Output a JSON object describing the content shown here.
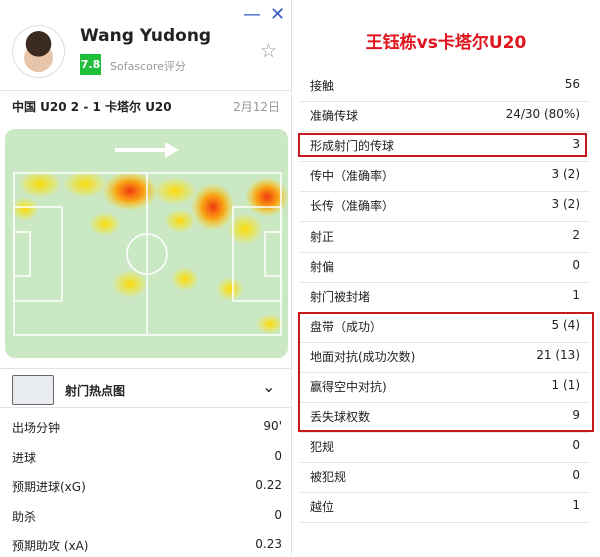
{
  "window": {
    "minimize_icon": "minimize-icon",
    "close_icon": "close-icon"
  },
  "player": {
    "name": "Wang Yudong",
    "rating": "7.8",
    "rating_label": "Sofascore评分",
    "rating_color": "#1fbf3a"
  },
  "match": {
    "teams": "中国 U20 2 - 1 卡塔尔 U20",
    "date": "2月12日"
  },
  "shotmap": {
    "label": "射门热点图"
  },
  "left_stats": [
    {
      "label": "出场分钟",
      "value": "90'"
    },
    {
      "label": "进球",
      "value": "0"
    },
    {
      "label": "预期进球(xG)",
      "value": "0.22"
    },
    {
      "label": "助杀",
      "value": "0"
    },
    {
      "label": "预期助攻 (xA)",
      "value": "0.23"
    }
  ],
  "right": {
    "title": "王钰栋vs卡塔尔U20",
    "title_color": "#e0141e",
    "stats": [
      {
        "label": "接触",
        "value": "56"
      },
      {
        "label": "准确传球",
        "value": "24/30 (80%)"
      },
      {
        "label": "形成射门的传球",
        "value": "3"
      },
      {
        "label": "传中（准确率）",
        "value": "3 (2)"
      },
      {
        "label": "长传（准确率）",
        "value": "3 (2)"
      },
      {
        "label": "射正",
        "value": "2"
      },
      {
        "label": "射偏",
        "value": "0"
      },
      {
        "label": "射门被封堵",
        "value": "1"
      },
      {
        "label": "盘带（成功）",
        "value": "5 (4)"
      },
      {
        "label": "地面对抗(成功次数)",
        "value": "21 (13)"
      },
      {
        "label": "赢得空中对抗)",
        "value": "1 (1)"
      },
      {
        "label": "丢失球权数",
        "value": "9"
      },
      {
        "label": "犯规",
        "value": "0"
      },
      {
        "label": "被犯规",
        "value": "0"
      },
      {
        "label": "越位",
        "value": "1"
      }
    ]
  }
}
